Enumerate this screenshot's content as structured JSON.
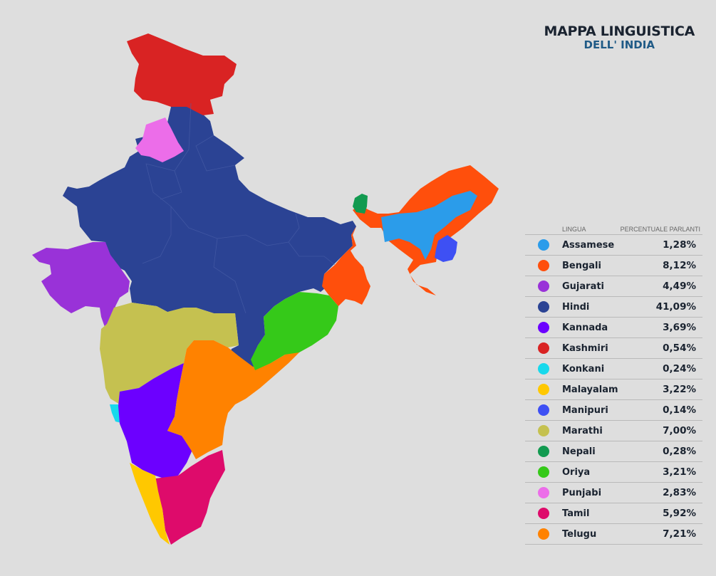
{
  "title": {
    "line1": "MAPPA LINGUISTICA",
    "line2": "DELL' INDIA"
  },
  "legend": {
    "header_language": "LINGUA",
    "header_percent": "PERCENTUALE PARLANTI",
    "items": [
      {
        "language": "Assamese",
        "percent": "1,28%",
        "color": "#2b9cea"
      },
      {
        "language": "Bengali",
        "percent": "8,12%",
        "color": "#ff4f0c"
      },
      {
        "language": "Gujarati",
        "percent": "4,49%",
        "color": "#9932d8"
      },
      {
        "language": "Hindi",
        "percent": "41,09%",
        "color": "#2b4394"
      },
      {
        "language": "Kannada",
        "percent": "3,69%",
        "color": "#6c00ff"
      },
      {
        "language": "Kashmiri",
        "percent": "0,54%",
        "color": "#d92323"
      },
      {
        "language": "Konkani",
        "percent": "0,24%",
        "color": "#18d9ec"
      },
      {
        "language": "Malayalam",
        "percent": "3,22%",
        "color": "#ffc800"
      },
      {
        "language": "Manipuri",
        "percent": "0,14%",
        "color": "#3e50f4"
      },
      {
        "language": "Marathi",
        "percent": "7,00%",
        "color": "#c5c150"
      },
      {
        "language": "Nepali",
        "percent": "0,28%",
        "color": "#129a50"
      },
      {
        "language": "Oriya",
        "percent": "3,21%",
        "color": "#35c919"
      },
      {
        "language": "Punjabi",
        "percent": "2,83%",
        "color": "#ec6de9"
      },
      {
        "language": "Tamil",
        "percent": "5,92%",
        "color": "#de0b6b"
      },
      {
        "language": "Telugu",
        "percent": "7,21%",
        "color": "#ff8200"
      }
    ]
  }
}
